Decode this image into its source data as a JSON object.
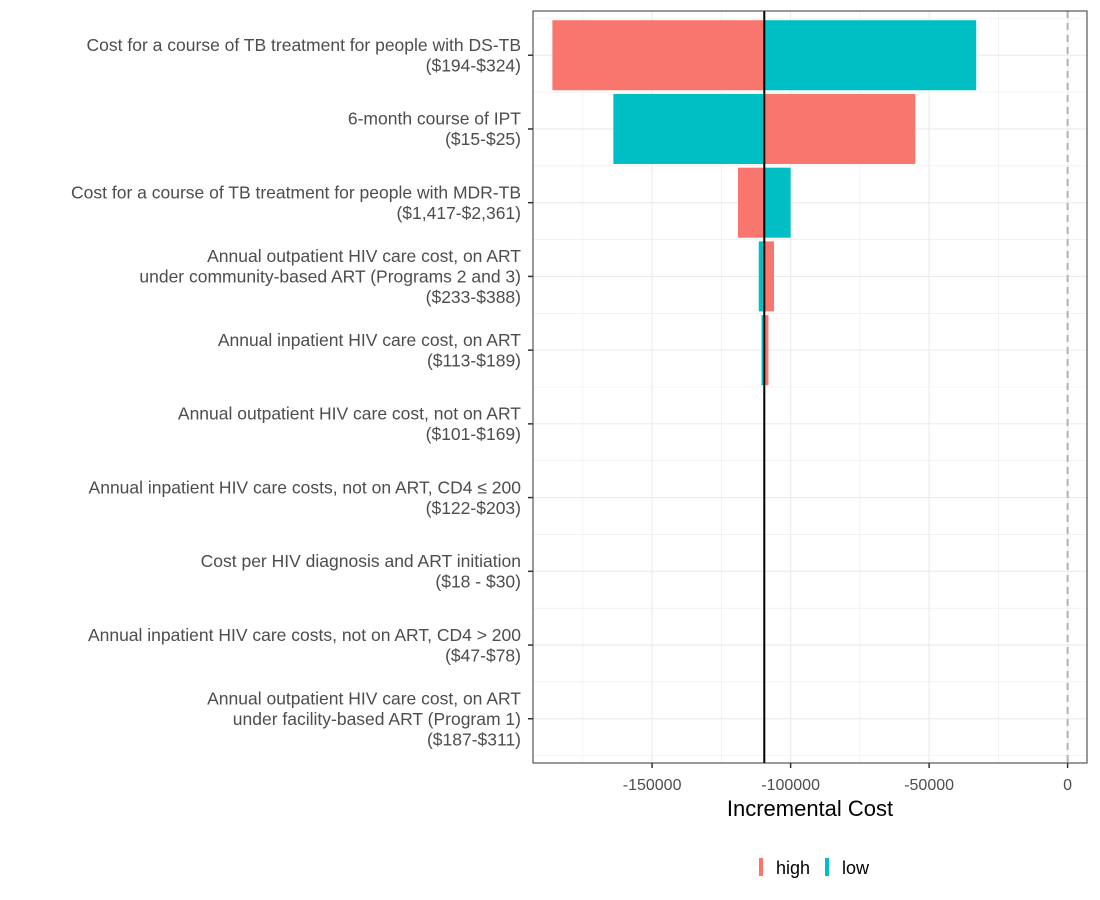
{
  "chart_data": {
    "type": "bar",
    "subtype": "tornado",
    "xlabel": "Incremental Cost",
    "xlim": [
      -193000,
      7000
    ],
    "xticks": [
      -150000,
      -100000,
      -50000,
      0
    ],
    "xtick_labels": [
      "-150000",
      "-100000",
      "-50000",
      "0"
    ],
    "base_value": -109500,
    "reference_line": 0,
    "grid": true,
    "legend_position": "bottom",
    "categories": [
      {
        "lines": [
          "Cost for a course of TB treatment for people with DS-TB",
          "($194-$324)"
        ]
      },
      {
        "lines": [
          "6-month course of IPT",
          "($15-$25)"
        ]
      },
      {
        "lines": [
          "Cost for a course of TB treatment for people with MDR-TB",
          "($1,417-$2,361)"
        ]
      },
      {
        "lines": [
          "Annual outpatient HIV care cost, on ART",
          "under community-based ART (Programs 2 and 3)",
          "($233-$388)"
        ]
      },
      {
        "lines": [
          "Annual inpatient HIV care cost, on ART",
          "($113-$189)"
        ]
      },
      {
        "lines": [
          "Annual outpatient HIV care cost, not on ART",
          "($101-$169)"
        ]
      },
      {
        "lines": [
          "Annual inpatient HIV care costs, not on ART, CD4  ≤ 200",
          "($122-$203)"
        ]
      },
      {
        "lines": [
          "Cost per HIV diagnosis and ART initiation",
          "($18 - $30)"
        ]
      },
      {
        "lines": [
          "Annual inpatient HIV care costs, not on ART, CD4 > 200",
          "($47-$78)"
        ]
      },
      {
        "lines": [
          "Annual outpatient HIV care cost, on ART",
          "under facility-based ART (Program 1)",
          "($187-$311)"
        ]
      }
    ],
    "series": [
      {
        "name": "high",
        "color": "#F8766D",
        "values": [
          -186000,
          -55000,
          -119000,
          -106000,
          -108000,
          -109500,
          -109500,
          -109500,
          -109500,
          -109500
        ]
      },
      {
        "name": "low",
        "color": "#00BFC4",
        "values": [
          -33000,
          -164000,
          -100000,
          -111500,
          -110500,
          -109500,
          -109500,
          -109500,
          -109500,
          -109500
        ]
      }
    ],
    "legend": [
      {
        "label": "high",
        "color": "#F8766D"
      },
      {
        "label": "low",
        "color": "#00BFC4"
      }
    ]
  }
}
